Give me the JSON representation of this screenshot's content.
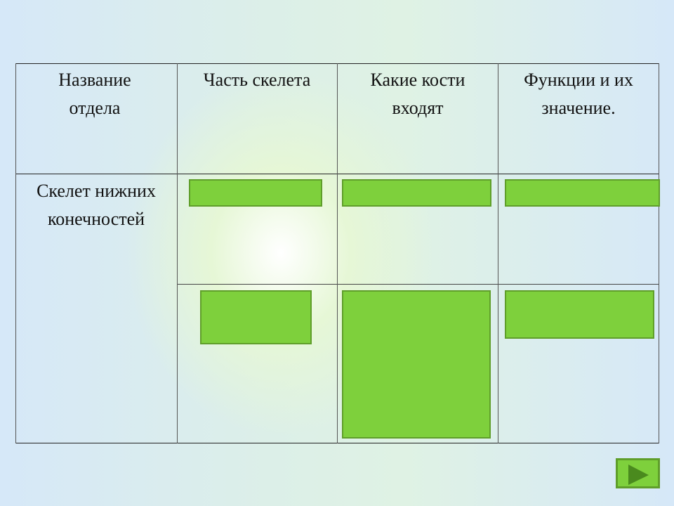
{
  "table": {
    "headers": [
      "Название отдела",
      "Часть скелета",
      "Какие кости входят",
      "Функции и их значение."
    ],
    "row_label": "Скелет нижних конечностей"
  },
  "colors": {
    "answer_box": "#7ed03c",
    "answer_border": "#5f9e2a"
  },
  "nav": {
    "next_icon": "play-triangle-icon"
  }
}
